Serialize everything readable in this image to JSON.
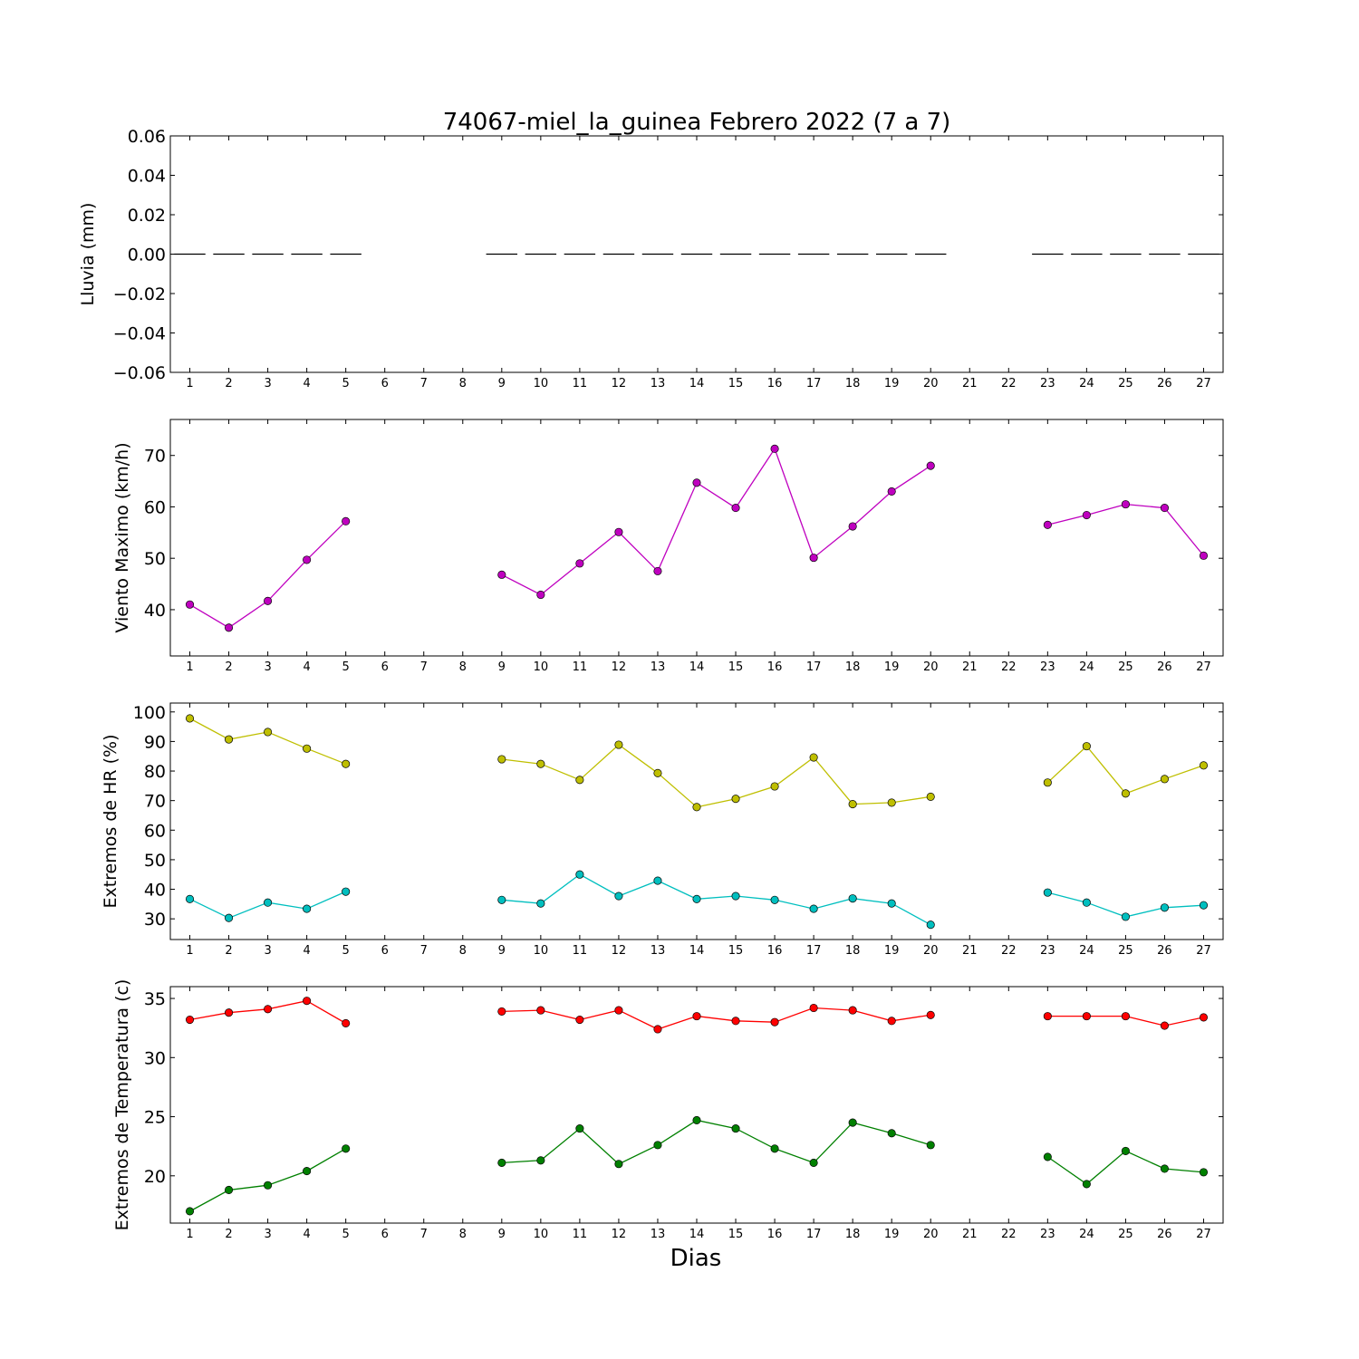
{
  "title": "74067-miel_la_guinea Febrero 2022  (7 a 7)",
  "xlabel": "Dias",
  "days": [
    1,
    2,
    3,
    4,
    5,
    6,
    7,
    8,
    9,
    10,
    11,
    12,
    13,
    14,
    15,
    16,
    17,
    18,
    19,
    20,
    21,
    22,
    23,
    24,
    25,
    26,
    27
  ],
  "chart_data": [
    {
      "type": "bar",
      "ylabel": "Lluvia (mm)",
      "ylim": [
        -0.06,
        0.06
      ],
      "yticks": [
        0.06,
        0.04,
        0.02,
        0.0,
        -0.02,
        -0.04,
        -0.06
      ],
      "ytick_labels": [
        "0.06",
        "0.04",
        "0.02",
        "0.00",
        "−0.02",
        "−0.04",
        "−0.06"
      ],
      "grid": false,
      "series": [
        {
          "color": "#000000",
          "values": [
            0,
            0,
            0,
            0,
            0,
            null,
            null,
            null,
            0,
            0,
            0,
            0,
            0,
            0,
            0,
            0,
            0,
            0,
            0,
            0,
            null,
            null,
            0,
            0,
            0,
            0,
            0
          ]
        }
      ]
    },
    {
      "type": "line",
      "ylabel": "Viento Maximo (km/h)",
      "ylim": [
        31,
        77
      ],
      "yticks": [
        70,
        60,
        50,
        40
      ],
      "ytick_labels": [
        "70",
        "60",
        "50",
        "40"
      ],
      "grid": false,
      "series": [
        {
          "color": "#bf00bf",
          "values": [
            41,
            36.5,
            41.7,
            49.7,
            57.2,
            null,
            null,
            null,
            46.8,
            42.9,
            49,
            55.1,
            47.5,
            64.7,
            59.8,
            71.3,
            50.1,
            56.2,
            63,
            68,
            null,
            null,
            56.5,
            58.4,
            60.5,
            59.8,
            50.5
          ]
        }
      ]
    },
    {
      "type": "line",
      "ylabel": "Extremos de HR (%)",
      "ylim": [
        23,
        103
      ],
      "yticks": [
        100,
        90,
        80,
        70,
        60,
        50,
        40,
        30
      ],
      "ytick_labels": [
        "100",
        "90",
        "80",
        "70",
        "60",
        "50",
        "40",
        "30"
      ],
      "grid": false,
      "series": [
        {
          "color": "#bfbf00",
          "values": [
            97.8,
            90.7,
            93.2,
            87.6,
            82.4,
            null,
            null,
            null,
            84,
            82.4,
            77,
            88.9,
            79.3,
            67.8,
            70.6,
            74.8,
            84.6,
            68.8,
            69.3,
            71.3,
            null,
            null,
            76.1,
            88.4,
            72.4,
            77.3,
            81.9
          ]
        },
        {
          "color": "#00bfbf",
          "values": [
            36.7,
            30.3,
            35.5,
            33.4,
            39.2,
            null,
            null,
            null,
            36.4,
            35.2,
            45,
            37.7,
            42.9,
            36.7,
            37.7,
            36.4,
            33.4,
            36.9,
            35.2,
            28,
            null,
            null,
            38.9,
            35.5,
            30.7,
            33.8,
            34.6
          ]
        }
      ]
    },
    {
      "type": "line",
      "ylabel": "Extremos de Temperatura (c)",
      "ylim": [
        16,
        36
      ],
      "yticks": [
        35,
        30,
        25,
        20
      ],
      "ytick_labels": [
        "35",
        "30",
        "25",
        "20"
      ],
      "grid": false,
      "series": [
        {
          "color": "#ff0000",
          "values": [
            33.2,
            33.8,
            34.1,
            34.8,
            32.9,
            null,
            null,
            null,
            33.9,
            34,
            33.2,
            34,
            32.4,
            33.5,
            33.1,
            33,
            34.2,
            34,
            33.1,
            33.6,
            null,
            null,
            33.5,
            33.5,
            33.5,
            32.7,
            33.4
          ]
        },
        {
          "color": "#008000",
          "values": [
            17,
            18.8,
            19.2,
            20.4,
            22.3,
            null,
            null,
            null,
            21.1,
            21.3,
            24,
            21,
            22.6,
            24.7,
            24,
            22.3,
            21.1,
            24.5,
            23.6,
            22.6,
            null,
            null,
            21.6,
            19.3,
            22.1,
            20.6,
            20.3
          ]
        }
      ]
    }
  ]
}
